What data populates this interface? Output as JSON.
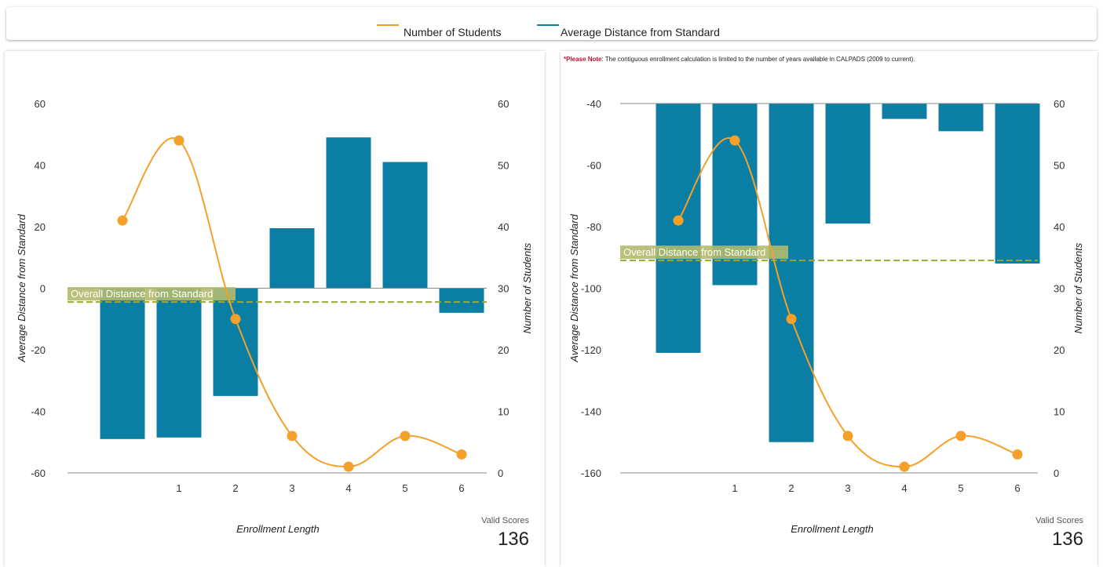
{
  "legend": {
    "items": [
      {
        "label": "Number of Students",
        "color": "#f5a02a"
      },
      {
        "label": "Average Distance from Standard",
        "color": "#0a7fa3"
      }
    ]
  },
  "note": {
    "prefix": "*Please Note",
    "text": ": The contiguous enrollment calculation is limited to the number of years available in CALPADS (2009 to current)."
  },
  "colors": {
    "bar": "#0a7fa3",
    "line": "#f5a02a",
    "reference": "#9aa83a",
    "reference_label_bg": "#b3ba6b"
  },
  "chart_data": [
    {
      "type": "bar",
      "categories": [
        "",
        "1",
        "2",
        "3",
        "4",
        "5",
        "6"
      ],
      "series": [
        {
          "name": "Average Distance from Standard",
          "axis": "left",
          "type": "bar",
          "values": [
            -49,
            -48.5,
            -35,
            19.5,
            49,
            41,
            -8
          ]
        },
        {
          "name": "Number of Students",
          "axis": "right",
          "type": "line",
          "values": [
            41,
            54,
            25,
            6,
            1,
            6,
            3
          ]
        }
      ],
      "ylabel": "Average Distance from Standard",
      "y2label": "Number of Students",
      "xlabel": "Enrollment Length",
      "ylim": [
        -60,
        60
      ],
      "y2lim": [
        0,
        60
      ],
      "yticks": [
        "60",
        "40",
        "20",
        "0",
        "-20",
        "-40",
        "-60"
      ],
      "y2ticks": [
        "60",
        "50",
        "40",
        "30",
        "20",
        "10",
        "0"
      ],
      "bar_baseline": 0,
      "reference": {
        "label": "Overall Distance from Standard",
        "value": -4.5
      },
      "valid_scores": {
        "label": "Valid Scores",
        "value": "136"
      }
    },
    {
      "type": "bar",
      "categories": [
        "",
        "1",
        "2",
        "3",
        "4",
        "5",
        "6"
      ],
      "series": [
        {
          "name": "Average Distance from Standard",
          "axis": "left",
          "type": "bar",
          "values": [
            -121,
            -99,
            -150,
            -79,
            -45,
            -49,
            -92
          ]
        },
        {
          "name": "Number of Students",
          "axis": "right",
          "type": "line",
          "values": [
            41,
            54,
            25,
            6,
            1,
            6,
            3
          ]
        }
      ],
      "ylabel": "Average Distance from Standard",
      "y2label": "Number of Students",
      "xlabel": "Enrollment Length",
      "ylim": [
        -160,
        -40
      ],
      "y2lim": [
        0,
        60
      ],
      "yticks": [
        "-40",
        "-60",
        "-80",
        "-100",
        "-120",
        "-140",
        "-160"
      ],
      "y2ticks": [
        "60",
        "50",
        "40",
        "30",
        "20",
        "10",
        "0"
      ],
      "bar_baseline": -40,
      "reference": {
        "label": "Overall Distance from Standard",
        "value": -91
      },
      "valid_scores": {
        "label": "Valid Scores",
        "value": "136"
      }
    }
  ]
}
